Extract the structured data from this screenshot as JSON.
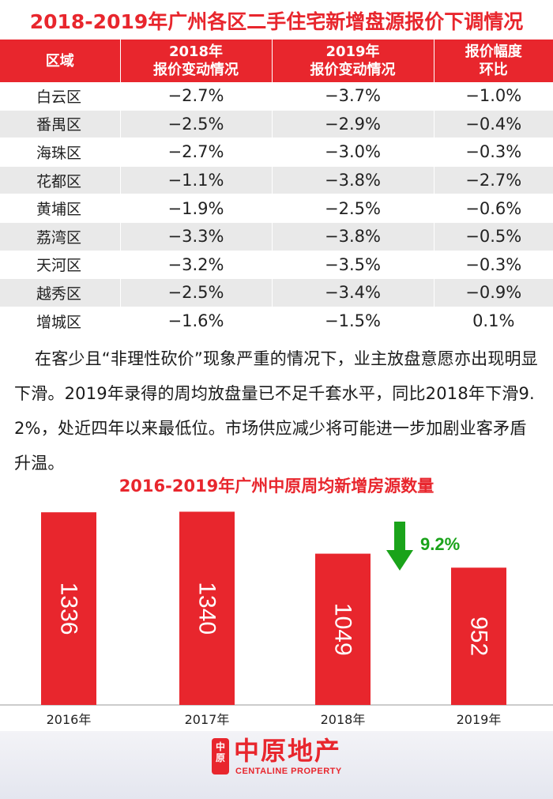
{
  "title": "2018-2019年广州各区二手住宅新增盘源报价下调情况",
  "table": {
    "headers": [
      {
        "line1": "区域",
        "line2": ""
      },
      {
        "line1": "2018年",
        "line2": "报价变动情况"
      },
      {
        "line1": "2019年",
        "line2": "报价变动情况"
      },
      {
        "line1": "报价幅度",
        "line2": "环比"
      }
    ],
    "rows": [
      [
        "白云区",
        "−2.7%",
        "−3.7%",
        "−1.0%"
      ],
      [
        "番禺区",
        "−2.5%",
        "−2.9%",
        "−0.4%"
      ],
      [
        "海珠区",
        "−2.7%",
        "−3.0%",
        "−0.3%"
      ],
      [
        "花都区",
        "−1.1%",
        "−3.8%",
        "−2.7%"
      ],
      [
        "黄埔区",
        "−1.9%",
        "−2.5%",
        "−0.6%"
      ],
      [
        "荔湾区",
        "−3.3%",
        "−3.8%",
        "−0.5%"
      ],
      [
        "天河区",
        "−3.2%",
        "−3.5%",
        "−0.3%"
      ],
      [
        "越秀区",
        "−2.5%",
        "−3.4%",
        "−0.9%"
      ],
      [
        "增城区",
        "−1.6%",
        "−1.5%",
        "0.1%"
      ]
    ]
  },
  "paragraph": "在客少且“非理性砍价”现象严重的情况下，业主放盘意愿亦出现明显下滑。2019年录得的周均放盘量已不足千套水平，同比2018年下滑9.2%，处近四年以来最低位。市场供应减少将可能进一步加剧业客矛盾升温。",
  "chart_data": {
    "type": "bar",
    "title": "2016-2019年广州中原周均新增房源数量",
    "categories": [
      "2016年",
      "2017年",
      "2018年",
      "2019年"
    ],
    "values": [
      1336,
      1340,
      1049,
      952
    ],
    "ylim": [
      0,
      1370
    ],
    "annotation": {
      "text": "9.2%",
      "arrow": "down",
      "category": "2018年",
      "color": "#1aa31a"
    },
    "bar_color": "#e8262d",
    "xlabel": "",
    "ylabel": ""
  },
  "logo": {
    "name": "中原地产",
    "sub": "CENTALINE PROPERTY",
    "mark": "中原"
  },
  "colors": {
    "accent": "#e8262d",
    "stripe": "#e9e9e9",
    "up_down_green": "#1aa31a"
  }
}
